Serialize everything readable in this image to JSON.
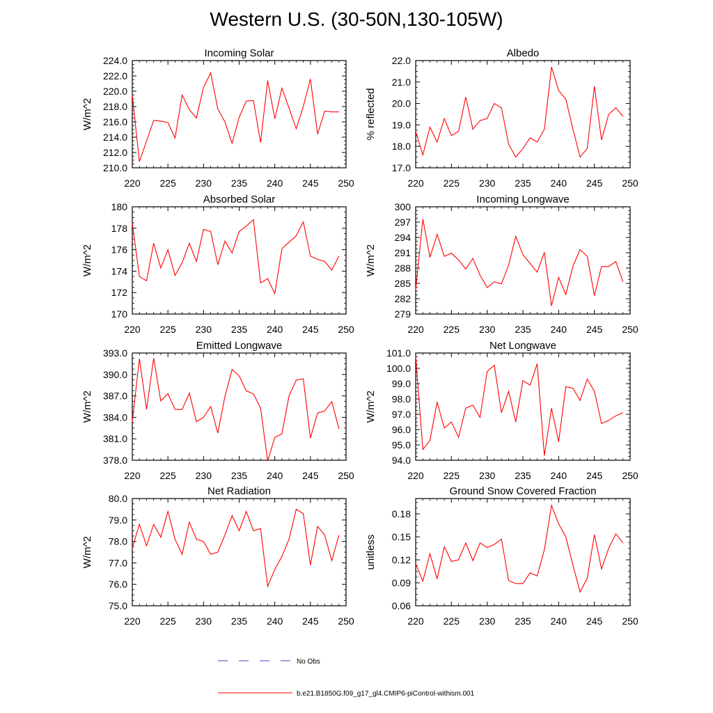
{
  "figure": {
    "title": "Western U.S. (30-50N,130-105W)"
  },
  "legend": {
    "items": [
      {
        "label": "No Obs",
        "color": "#4040c0",
        "dash": true
      },
      {
        "label": "b.e21.B1850G.f09_g17_gl4.CMIP6-piControl-withism.001",
        "color": "#ff0000",
        "dash": false
      }
    ]
  },
  "chart_data": [
    {
      "type": "line",
      "title": "Incoming Solar",
      "ylabel": "W/m^2",
      "xlim": [
        220,
        250
      ],
      "ylim": [
        210,
        224
      ],
      "xticks": [
        "220",
        "225",
        "230",
        "235",
        "240",
        "245",
        "250"
      ],
      "yticks": [
        "210.0",
        "212.0",
        "214.0",
        "216.0",
        "218.0",
        "220.0",
        "222.0",
        "224.0"
      ],
      "series": [
        {
          "color": "#ff0000",
          "x": [
            220,
            221,
            222,
            223,
            224,
            225,
            226,
            227,
            228,
            229,
            230,
            231,
            232,
            233,
            234,
            235,
            236,
            237,
            238,
            239,
            240,
            241,
            242,
            243,
            244,
            245,
            246,
            247,
            248,
            249
          ],
          "values": [
            219.5,
            210.8,
            213.5,
            216.2,
            216.1,
            215.9,
            213.9,
            219.5,
            217.6,
            216.5,
            220.5,
            222.4,
            217.7,
            216.0,
            213.2,
            216.6,
            218.7,
            218.8,
            213.3,
            221.4,
            216.4,
            220.4,
            217.8,
            215.1,
            218.0,
            221.6,
            214.4,
            217.4,
            217.3,
            217.3
          ]
        }
      ]
    },
    {
      "type": "line",
      "title": "Albedo",
      "ylabel": "% reflected",
      "xlim": [
        220,
        250
      ],
      "ylim": [
        17,
        22
      ],
      "xticks": [
        "220",
        "225",
        "230",
        "235",
        "240",
        "245",
        "250"
      ],
      "yticks": [
        "17.0",
        "18.0",
        "19.0",
        "20.0",
        "21.0",
        "22.0"
      ],
      "series": [
        {
          "color": "#ff0000",
          "x": [
            220,
            221,
            222,
            223,
            224,
            225,
            226,
            227,
            228,
            229,
            230,
            231,
            232,
            233,
            234,
            235,
            236,
            237,
            238,
            239,
            240,
            241,
            242,
            243,
            244,
            245,
            246,
            247,
            248,
            249
          ],
          "values": [
            18.7,
            17.6,
            18.9,
            18.2,
            19.3,
            18.5,
            18.7,
            20.3,
            18.8,
            19.2,
            19.3,
            20.0,
            19.8,
            18.1,
            17.5,
            17.9,
            18.4,
            18.2,
            18.8,
            21.7,
            20.6,
            20.2,
            18.8,
            17.5,
            17.9,
            20.8,
            18.3,
            19.5,
            19.8,
            19.4
          ]
        }
      ]
    },
    {
      "type": "line",
      "title": "Absorbed Solar",
      "ylabel": "W/m^2",
      "xlim": [
        220,
        250
      ],
      "ylim": [
        170,
        180
      ],
      "xticks": [
        "220",
        "225",
        "230",
        "235",
        "240",
        "245",
        "250"
      ],
      "yticks": [
        "170",
        "172",
        "174",
        "176",
        "178",
        "180"
      ],
      "series": [
        {
          "color": "#ff0000",
          "x": [
            220,
            221,
            222,
            223,
            224,
            225,
            226,
            227,
            228,
            229,
            230,
            231,
            232,
            233,
            234,
            235,
            236,
            237,
            238,
            239,
            240,
            241,
            242,
            243,
            244,
            245,
            246,
            247,
            248,
            249
          ],
          "values": [
            178.5,
            173.5,
            173.1,
            176.6,
            174.3,
            176.0,
            173.6,
            174.8,
            176.6,
            174.9,
            177.9,
            177.7,
            174.6,
            176.8,
            175.7,
            177.7,
            178.2,
            178.8,
            172.9,
            173.3,
            171.9,
            176.1,
            176.7,
            177.3,
            178.6,
            175.4,
            175.1,
            174.9,
            174.1,
            175.4
          ]
        }
      ]
    },
    {
      "type": "line",
      "title": "Incoming Longwave",
      "ylabel": "W/m^2",
      "xlim": [
        220,
        250
      ],
      "ylim": [
        279,
        300
      ],
      "xticks": [
        "220",
        "225",
        "230",
        "235",
        "240",
        "245",
        "250"
      ],
      "yticks": [
        "279",
        "282",
        "285",
        "288",
        "291",
        "294",
        "297",
        "300"
      ],
      "series": [
        {
          "color": "#ff0000",
          "x": [
            220,
            221,
            222,
            223,
            224,
            225,
            226,
            227,
            228,
            229,
            230,
            231,
            232,
            233,
            234,
            235,
            236,
            237,
            238,
            239,
            240,
            241,
            242,
            243,
            244,
            245,
            246,
            247,
            248,
            249
          ],
          "values": [
            283.7,
            297.6,
            290.1,
            294.6,
            290.3,
            290.9,
            289.6,
            287.8,
            289.9,
            286.6,
            284.2,
            285.3,
            284.9,
            288.6,
            294.2,
            290.6,
            288.9,
            287.2,
            291.1,
            280.6,
            286.2,
            282.8,
            288.4,
            291.6,
            290.3,
            282.6,
            288.3,
            288.3,
            289.3,
            285.3
          ]
        }
      ]
    },
    {
      "type": "line",
      "title": "Emitted Longwave",
      "ylabel": "W/m^2",
      "xlim": [
        220,
        250
      ],
      "ylim": [
        378,
        393
      ],
      "xticks": [
        "220",
        "225",
        "230",
        "235",
        "240",
        "245",
        "250"
      ],
      "yticks": [
        "378.0",
        "381.0",
        "384.0",
        "387.0",
        "390.0",
        "393.0"
      ],
      "series": [
        {
          "color": "#ff0000",
          "x": [
            220,
            221,
            222,
            223,
            224,
            225,
            226,
            227,
            228,
            229,
            230,
            231,
            232,
            233,
            234,
            235,
            236,
            237,
            238,
            239,
            240,
            241,
            242,
            243,
            244,
            245,
            246,
            247,
            248,
            249
          ],
          "values": [
            383.4,
            392.2,
            385.1,
            392.3,
            386.3,
            387.3,
            385.1,
            385.1,
            387.4,
            383.4,
            384.0,
            385.5,
            381.8,
            386.9,
            390.7,
            389.8,
            387.7,
            387.3,
            385.3,
            377.9,
            381.2,
            381.7,
            387.0,
            389.2,
            389.4,
            381.1,
            384.6,
            384.9,
            386.2,
            382.4
          ]
        }
      ]
    },
    {
      "type": "line",
      "title": "Net Longwave",
      "ylabel": "W/m^2",
      "xlim": [
        220,
        250
      ],
      "ylim": [
        94,
        101
      ],
      "xticks": [
        "220",
        "225",
        "230",
        "235",
        "240",
        "245",
        "250"
      ],
      "yticks": [
        "94.0",
        "95.0",
        "96.0",
        "97.0",
        "98.0",
        "99.0",
        "100.0",
        "101.0"
      ],
      "series": [
        {
          "color": "#ff0000",
          "x": [
            220,
            221,
            222,
            223,
            224,
            225,
            226,
            227,
            228,
            229,
            230,
            231,
            232,
            233,
            234,
            235,
            236,
            237,
            238,
            239,
            240,
            241,
            242,
            243,
            244,
            245,
            246,
            247,
            248,
            249
          ],
          "values": [
            100.8,
            94.7,
            95.3,
            97.8,
            96.1,
            96.5,
            95.5,
            97.4,
            97.6,
            96.8,
            99.8,
            100.2,
            97.1,
            98.5,
            96.5,
            99.2,
            98.9,
            100.3,
            94.3,
            97.4,
            95.2,
            98.8,
            98.7,
            97.9,
            99.3,
            98.5,
            96.4,
            96.6,
            96.9,
            97.1
          ]
        }
      ]
    },
    {
      "type": "line",
      "title": "Net Radiation",
      "ylabel": "W/m^2",
      "xlim": [
        220,
        250
      ],
      "ylim": [
        75,
        80
      ],
      "xticks": [
        "220",
        "225",
        "230",
        "235",
        "240",
        "245",
        "250"
      ],
      "yticks": [
        "75.0",
        "76.0",
        "77.0",
        "78.0",
        "79.0",
        "80.0"
      ],
      "series": [
        {
          "color": "#ff0000",
          "x": [
            220,
            221,
            222,
            223,
            224,
            225,
            226,
            227,
            228,
            229,
            230,
            231,
            232,
            233,
            234,
            235,
            236,
            237,
            238,
            239,
            240,
            241,
            242,
            243,
            244,
            245,
            246,
            247,
            248,
            249
          ],
          "values": [
            77.7,
            78.8,
            77.8,
            78.8,
            78.2,
            79.4,
            78.1,
            77.4,
            78.9,
            78.1,
            78.0,
            77.4,
            77.5,
            78.3,
            79.2,
            78.5,
            79.4,
            78.5,
            78.6,
            75.9,
            76.7,
            77.3,
            78.1,
            79.5,
            79.3,
            76.9,
            78.7,
            78.3,
            77.1,
            78.3
          ]
        }
      ]
    },
    {
      "type": "line",
      "title": "Ground Snow Covered Fraction",
      "ylabel": "unitless",
      "xlim": [
        220,
        250
      ],
      "ylim": [
        0.06,
        0.2
      ],
      "xticks": [
        "220",
        "225",
        "230",
        "235",
        "240",
        "245",
        "250"
      ],
      "yticks": [
        "0.06",
        "0.09",
        "0.12",
        "0.15",
        "0.18"
      ],
      "series": [
        {
          "color": "#ff0000",
          "x": [
            220,
            221,
            222,
            223,
            224,
            225,
            226,
            227,
            228,
            229,
            230,
            231,
            232,
            233,
            234,
            235,
            236,
            237,
            238,
            239,
            240,
            241,
            242,
            243,
            244,
            245,
            246,
            247,
            248,
            249
          ],
          "values": [
            0.115,
            0.092,
            0.128,
            0.095,
            0.137,
            0.118,
            0.12,
            0.142,
            0.119,
            0.142,
            0.136,
            0.14,
            0.147,
            0.093,
            0.089,
            0.089,
            0.103,
            0.099,
            0.133,
            0.191,
            0.167,
            0.15,
            0.113,
            0.078,
            0.096,
            0.153,
            0.108,
            0.135,
            0.154,
            0.142
          ]
        }
      ]
    }
  ]
}
